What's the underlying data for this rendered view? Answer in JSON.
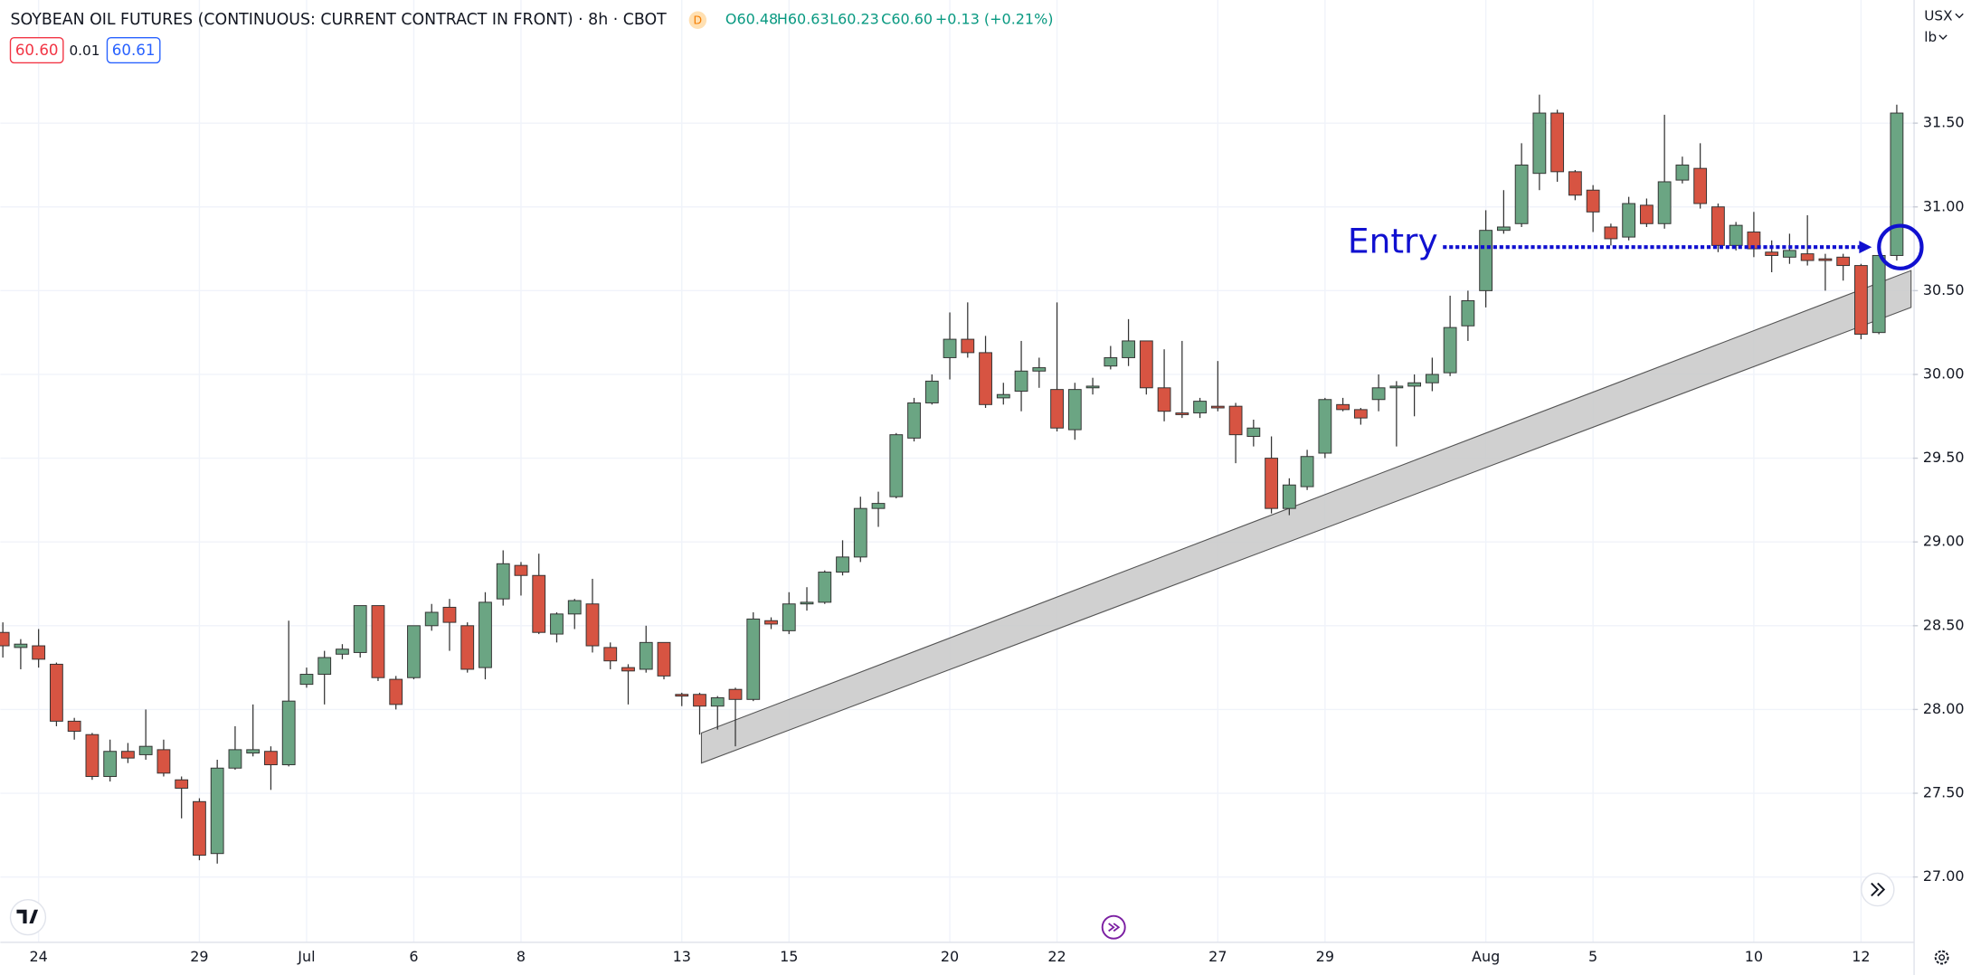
{
  "chart_data": {
    "type": "candlestick",
    "title": "SOYBEAN OIL FUTURES (CONTINUOUS: CURRENT CONTRACT IN FRONT) · 8h · CBOT",
    "header": {
      "interval_badge": "D",
      "o": "O60.48",
      "h": "H60.63",
      "l": "L60.23",
      "c": "C60.60",
      "change": "+0.13 (+0.21%)",
      "bid": "60.60",
      "spread": "0.01",
      "ask": "60.61",
      "currency": "USX",
      "unit": "lb"
    },
    "categories": [
      null,
      null,
      "24",
      null,
      null,
      null,
      null,
      null,
      null,
      null,
      null,
      "29",
      null,
      null,
      null,
      null,
      null,
      "Jul",
      null,
      null,
      null,
      null,
      null,
      "6",
      null,
      null,
      null,
      null,
      null,
      "8",
      null,
      null,
      null,
      null,
      null,
      null,
      null,
      null,
      "13",
      null,
      null,
      null,
      null,
      null,
      "15",
      null,
      null,
      null,
      null,
      null,
      null,
      null,
      null,
      "20",
      null,
      null,
      null,
      null,
      null,
      "22",
      null,
      null,
      null,
      null,
      null,
      null,
      null,
      null,
      "27",
      null,
      null,
      null,
      null,
      null,
      "29",
      null,
      null,
      null,
      null,
      null,
      null,
      null,
      null,
      "Aug",
      null,
      null,
      null,
      null,
      null,
      "5",
      null,
      null,
      null,
      null,
      null,
      null,
      null,
      null,
      "10",
      null,
      null,
      null,
      null,
      null,
      "12",
      null,
      null
    ],
    "open": [
      28.46,
      28.37,
      28.38,
      28.27,
      27.93,
      27.85,
      27.6,
      27.75,
      27.73,
      27.76,
      27.58,
      27.45,
      27.14,
      27.65,
      27.74,
      27.75,
      27.67,
      28.15,
      28.21,
      28.33,
      28.34,
      28.62,
      28.18,
      28.19,
      28.5,
      28.61,
      28.5,
      28.25,
      28.66,
      28.86,
      28.8,
      28.45,
      28.57,
      28.63,
      28.37,
      28.25,
      28.24,
      28.4,
      28.09,
      28.09,
      28.02,
      28.12,
      28.06,
      28.53,
      28.47,
      28.63,
      28.64,
      28.82,
      28.91,
      29.2,
      29.27,
      29.62,
      29.83,
      30.1,
      30.21,
      30.13,
      29.86,
      29.9,
      30.02,
      29.91,
      29.67,
      29.92,
      30.05,
      30.1,
      30.2,
      29.92,
      29.77,
      29.77,
      29.81,
      29.81,
      29.63,
      29.5,
      29.2,
      29.33,
      29.53,
      29.82,
      29.79,
      29.85,
      29.92,
      29.93,
      29.95,
      30.01,
      30.29,
      30.5,
      30.86,
      30.9,
      31.2,
      31.56,
      31.21,
      31.1,
      30.88,
      30.82,
      31.01,
      30.9,
      31.16,
      31.23,
      31.0,
      30.77,
      30.85,
      30.73,
      30.7,
      30.72,
      30.69,
      30.7,
      30.65,
      30.25,
      30.71
    ],
    "high": [
      28.52,
      28.42,
      28.48,
      28.28,
      27.95,
      27.86,
      27.82,
      27.8,
      28.0,
      27.82,
      27.6,
      27.47,
      27.7,
      27.9,
      28.03,
      27.78,
      28.53,
      28.25,
      28.35,
      28.39,
      28.62,
      28.62,
      28.2,
      28.5,
      28.63,
      28.66,
      28.52,
      28.7,
      28.95,
      28.88,
      28.93,
      28.58,
      28.66,
      28.78,
      28.4,
      28.27,
      28.5,
      28.4,
      28.1,
      28.1,
      28.08,
      28.13,
      28.58,
      28.55,
      28.7,
      28.73,
      28.83,
      29.01,
      29.27,
      29.3,
      29.65,
      29.86,
      30.0,
      30.37,
      30.43,
      30.23,
      29.95,
      30.2,
      30.1,
      30.43,
      29.95,
      29.98,
      30.17,
      30.33,
      30.2,
      30.15,
      30.2,
      29.86,
      30.08,
      29.83,
      29.73,
      29.63,
      29.38,
      29.55,
      29.86,
      29.86,
      29.8,
      30.0,
      29.96,
      30.0,
      30.1,
      30.47,
      30.5,
      30.98,
      31.1,
      31.38,
      31.67,
      31.58,
      31.22,
      31.13,
      30.9,
      31.06,
      31.05,
      31.55,
      31.3,
      31.38,
      31.02,
      30.91,
      30.97,
      30.8,
      30.84,
      30.95,
      30.72,
      30.72,
      30.66,
      30.75,
      31.61
    ],
    "low": [
      28.31,
      28.24,
      28.25,
      27.9,
      27.82,
      27.58,
      27.57,
      27.68,
      27.7,
      27.6,
      27.35,
      27.1,
      27.08,
      27.64,
      27.72,
      27.52,
      27.66,
      28.13,
      28.03,
      28.3,
      28.31,
      28.17,
      28.0,
      28.18,
      28.47,
      28.35,
      28.22,
      28.18,
      28.62,
      28.68,
      28.45,
      28.4,
      28.48,
      28.34,
      28.24,
      28.03,
      28.22,
      28.18,
      28.02,
      27.85,
      27.88,
      27.78,
      28.05,
      28.48,
      28.45,
      28.59,
      28.63,
      28.8,
      28.88,
      29.09,
      29.26,
      29.6,
      29.82,
      29.97,
      30.1,
      29.8,
      29.82,
      29.78,
      29.92,
      29.66,
      29.61,
      29.88,
      30.03,
      30.05,
      29.88,
      29.72,
      29.74,
      29.74,
      29.78,
      29.47,
      29.57,
      29.17,
      29.16,
      29.31,
      29.5,
      29.78,
      29.7,
      29.78,
      29.57,
      29.75,
      29.9,
      29.99,
      30.2,
      30.4,
      30.84,
      30.88,
      31.1,
      31.15,
      31.04,
      30.85,
      30.77,
      30.8,
      30.88,
      30.87,
      31.14,
      30.99,
      30.73,
      30.74,
      30.7,
      30.61,
      30.66,
      30.65,
      30.5,
      30.56,
      30.21,
      30.24,
      30.68
    ],
    "close": [
      28.38,
      28.39,
      28.3,
      27.93,
      27.87,
      27.6,
      27.75,
      27.71,
      27.78,
      27.62,
      27.53,
      27.13,
      27.65,
      27.76,
      27.76,
      27.67,
      28.05,
      28.21,
      28.31,
      28.36,
      28.62,
      28.19,
      28.03,
      28.5,
      28.58,
      28.52,
      28.24,
      28.64,
      28.87,
      28.8,
      28.46,
      28.57,
      28.65,
      28.38,
      28.29,
      28.23,
      28.4,
      28.2,
      28.08,
      28.02,
      28.07,
      28.06,
      28.54,
      28.51,
      28.63,
      28.64,
      28.82,
      28.91,
      29.2,
      29.23,
      29.64,
      29.83,
      29.96,
      30.21,
      30.13,
      29.82,
      29.88,
      30.02,
      30.04,
      29.68,
      29.91,
      29.93,
      30.1,
      30.2,
      29.92,
      29.78,
      29.76,
      29.84,
      29.8,
      29.64,
      29.68,
      29.2,
      29.34,
      29.51,
      29.85,
      29.79,
      29.74,
      29.92,
      29.93,
      29.95,
      30.0,
      30.28,
      30.44,
      30.86,
      30.88,
      31.25,
      31.56,
      31.21,
      31.07,
      30.97,
      30.81,
      31.02,
      30.9,
      31.15,
      31.25,
      31.02,
      30.77,
      30.89,
      30.75,
      30.71,
      30.74,
      30.68,
      30.68,
      30.65,
      30.24,
      30.71,
      31.56
    ],
    "up_color": "#6ba583",
    "down_color": "#d75442",
    "xlim": [
      -0.14,
      106.9
    ],
    "ylim": [
      26.61,
      32.235
    ],
    "yticks": [
      {
        "value": 27,
        "label": "27.00"
      },
      {
        "value": 27.5,
        "label": "27.50"
      },
      {
        "value": 28,
        "label": "28.00"
      },
      {
        "value": 28.5,
        "label": "28.50"
      },
      {
        "value": 29,
        "label": "29.00"
      },
      {
        "value": 29.5,
        "label": "29.50"
      },
      {
        "value": 30,
        "label": "30.00"
      },
      {
        "value": 30.5,
        "label": "30.50"
      },
      {
        "value": 31,
        "label": "31.00"
      },
      {
        "value": 31.5,
        "label": "31.50"
      }
    ],
    "grid": true,
    "channel": {
      "x": [
        39.1,
        106.8
      ],
      "upper": [
        27.86,
        30.62
      ],
      "lower": [
        27.68,
        30.4
      ],
      "color": "#c8c8c8"
    },
    "annotation": {
      "text": "Entry",
      "price": 30.76,
      "x": [
        80.6,
        104.6
      ],
      "circle_x": 106.2,
      "color": "#1010d0"
    }
  }
}
